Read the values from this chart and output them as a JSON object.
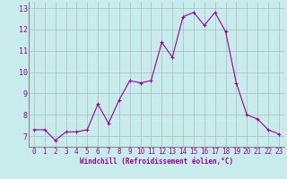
{
  "x": [
    0,
    1,
    2,
    3,
    4,
    5,
    6,
    7,
    8,
    9,
    10,
    11,
    12,
    13,
    14,
    15,
    16,
    17,
    18,
    19,
    20,
    21,
    22,
    23
  ],
  "y": [
    7.3,
    7.3,
    6.8,
    7.2,
    7.2,
    7.3,
    8.5,
    7.6,
    8.7,
    9.6,
    9.5,
    9.6,
    11.4,
    10.7,
    12.6,
    12.8,
    12.2,
    12.8,
    11.9,
    9.5,
    8.0,
    7.8,
    7.3,
    7.1
  ],
  "xlabel": "Windchill (Refroidissement éolien,°C)",
  "ylim": [
    6.5,
    13.3
  ],
  "xlim": [
    -0.5,
    23.5
  ],
  "yticks": [
    7,
    8,
    9,
    10,
    11,
    12,
    13
  ],
  "xticks": [
    0,
    1,
    2,
    3,
    4,
    5,
    6,
    7,
    8,
    9,
    10,
    11,
    12,
    13,
    14,
    15,
    16,
    17,
    18,
    19,
    20,
    21,
    22,
    23
  ],
  "line_color": "#990099",
  "marker": "+",
  "marker_size": 3.5,
  "bg_color": "#c8ecec",
  "grid_color": "#aabbbb",
  "xlabel_color": "#990099",
  "tick_color": "#990099",
  "tick_fontsize": 5.5,
  "xlabel_fontsize": 5.5
}
